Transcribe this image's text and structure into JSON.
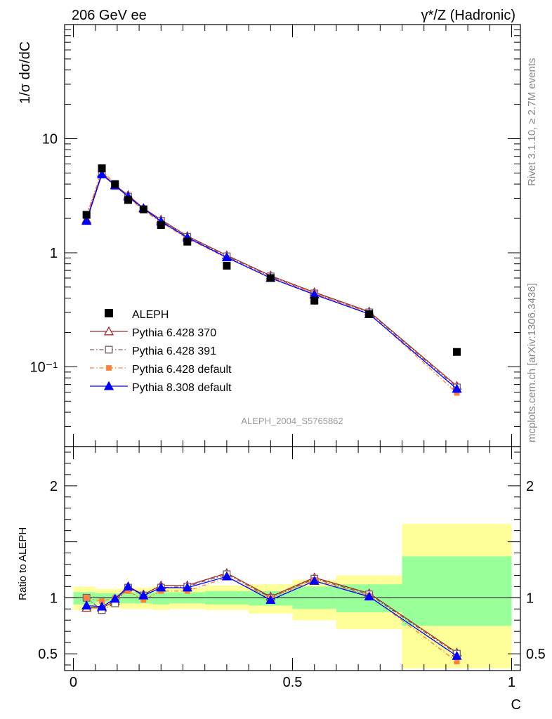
{
  "header": {
    "left": "206 GeV ee",
    "right": "γ*/Z (Hadronic)"
  },
  "side_text": {
    "rivet": "Rivet 3.1.10, ≥ 2.7M events",
    "mcplots": "mcplots.cern.ch [arXiv:1306.3436]"
  },
  "watermark": "ALEPH_2004_S5765862",
  "chart_data": [
    {
      "type": "line",
      "panel": "main",
      "ylabel": "1/σ  dσ/dC",
      "yscale": "log",
      "ylim": [
        0.02,
        100
      ],
      "xlim": [
        -0.02,
        1.02
      ],
      "y_ticks": [
        {
          "v": 0.1,
          "label": "10⁻¹"
        },
        {
          "v": 1,
          "label": "1"
        },
        {
          "v": 10,
          "label": "10"
        }
      ],
      "x": [
        0.03,
        0.065,
        0.095,
        0.125,
        0.16,
        0.2,
        0.26,
        0.35,
        0.45,
        0.55,
        0.675,
        0.875
      ],
      "data_series": {
        "name": "ALEPH",
        "color": "#000000",
        "values": [
          2.15,
          5.5,
          4.0,
          2.9,
          2.4,
          1.75,
          1.25,
          0.77,
          0.6,
          0.38,
          0.29,
          0.135
        ]
      },
      "series": [
        {
          "name": "Pythia 6.428 370",
          "color": "#a52a2a",
          "marker": "triangle-open",
          "dash": "",
          "values": [
            1.95,
            5.0,
            3.9,
            3.2,
            2.45,
            1.95,
            1.4,
            0.95,
            0.63,
            0.45,
            0.305,
            0.068
          ]
        },
        {
          "name": "Pythia 6.428 391",
          "color": "#7a5a6a",
          "marker": "square-open",
          "dash": "6,3,1.5,3",
          "values": [
            2.15,
            4.9,
            3.85,
            3.1,
            2.4,
            1.9,
            1.38,
            0.93,
            0.62,
            0.44,
            0.3,
            0.066
          ]
        },
        {
          "name": "Pythia 6.428 default",
          "color": "#ff7f3a",
          "marker": "square-filled",
          "dash": "6,3,1.5,3",
          "values": [
            2.1,
            5.3,
            4.0,
            3.05,
            2.35,
            1.85,
            1.33,
            0.9,
            0.61,
            0.44,
            0.295,
            0.059
          ]
        },
        {
          "name": "Pythia 8.308 default",
          "color": "#0000ff",
          "marker": "triangle-filled",
          "dash": "",
          "values": [
            1.9,
            4.85,
            3.9,
            3.1,
            2.45,
            1.88,
            1.36,
            0.91,
            0.6,
            0.43,
            0.29,
            0.064
          ]
        }
      ]
    },
    {
      "type": "line",
      "panel": "ratio",
      "ylabel": "Ratio to ALEPH",
      "xlabel": "C",
      "ylim": [
        0.35,
        2.35
      ],
      "xlim": [
        -0.02,
        1.02
      ],
      "x_ticks": [
        {
          "v": 0,
          "label": "0"
        },
        {
          "v": 0.5,
          "label": "0.5"
        },
        {
          "v": 1,
          "label": "1"
        }
      ],
      "y_ticks": [
        {
          "v": 0.5,
          "label": "0.5"
        },
        {
          "v": 1,
          "label": "1"
        },
        {
          "v": 2,
          "label": "2"
        }
      ],
      "x": [
        0.03,
        0.065,
        0.095,
        0.125,
        0.16,
        0.2,
        0.26,
        0.35,
        0.45,
        0.55,
        0.675,
        0.875
      ],
      "bands": {
        "bins": [
          [
            0,
            0.05
          ],
          [
            0.05,
            0.08
          ],
          [
            0.08,
            0.11
          ],
          [
            0.11,
            0.14
          ],
          [
            0.14,
            0.18
          ],
          [
            0.18,
            0.22
          ],
          [
            0.22,
            0.3
          ],
          [
            0.3,
            0.4
          ],
          [
            0.4,
            0.5
          ],
          [
            0.5,
            0.6
          ],
          [
            0.6,
            0.75
          ],
          [
            0.75,
            1.0
          ]
        ],
        "outer_color": "#ffff99",
        "inner_color": "#99ff99",
        "outer": [
          [
            0.89,
            1.1
          ],
          [
            0.92,
            1.08
          ],
          [
            0.91,
            1.08
          ],
          [
            0.9,
            1.09
          ],
          [
            0.9,
            1.09
          ],
          [
            0.89,
            1.1
          ],
          [
            0.9,
            1.09
          ],
          [
            0.89,
            1.11
          ],
          [
            0.86,
            1.12
          ],
          [
            0.8,
            1.16
          ],
          [
            0.72,
            1.2
          ],
          [
            0.37,
            1.66
          ]
        ],
        "inner": [
          [
            0.94,
            1.05
          ],
          [
            0.96,
            1.04
          ],
          [
            0.95,
            1.04
          ],
          [
            0.95,
            1.05
          ],
          [
            0.95,
            1.05
          ],
          [
            0.94,
            1.05
          ],
          [
            0.95,
            1.05
          ],
          [
            0.94,
            1.06
          ],
          [
            0.93,
            1.06
          ],
          [
            0.9,
            1.1
          ],
          [
            0.87,
            1.12
          ],
          [
            0.75,
            1.37
          ]
        ]
      },
      "series": [
        {
          "name": "Pythia 6.428 370",
          "values": [
            0.91,
            0.91,
            0.97,
            1.1,
            1.03,
            1.11,
            1.11,
            1.22,
            1.01,
            1.18,
            1.04,
            0.51
          ]
        },
        {
          "name": "Pythia 6.428 391",
          "values": [
            1.0,
            0.89,
            0.95,
            1.09,
            1.02,
            1.09,
            1.1,
            1.21,
            1.0,
            1.17,
            1.03,
            0.5
          ]
        },
        {
          "name": "Pythia 6.428 default",
          "values": [
            1.0,
            0.97,
            1.0,
            1.06,
            0.98,
            1.06,
            1.06,
            1.18,
            1.0,
            1.16,
            1.02,
            0.43
          ]
        },
        {
          "name": "Pythia 8.308 default",
          "values": [
            0.93,
            0.92,
            0.99,
            1.1,
            1.02,
            1.09,
            1.09,
            1.19,
            0.98,
            1.15,
            1.01,
            0.48
          ]
        }
      ]
    }
  ]
}
